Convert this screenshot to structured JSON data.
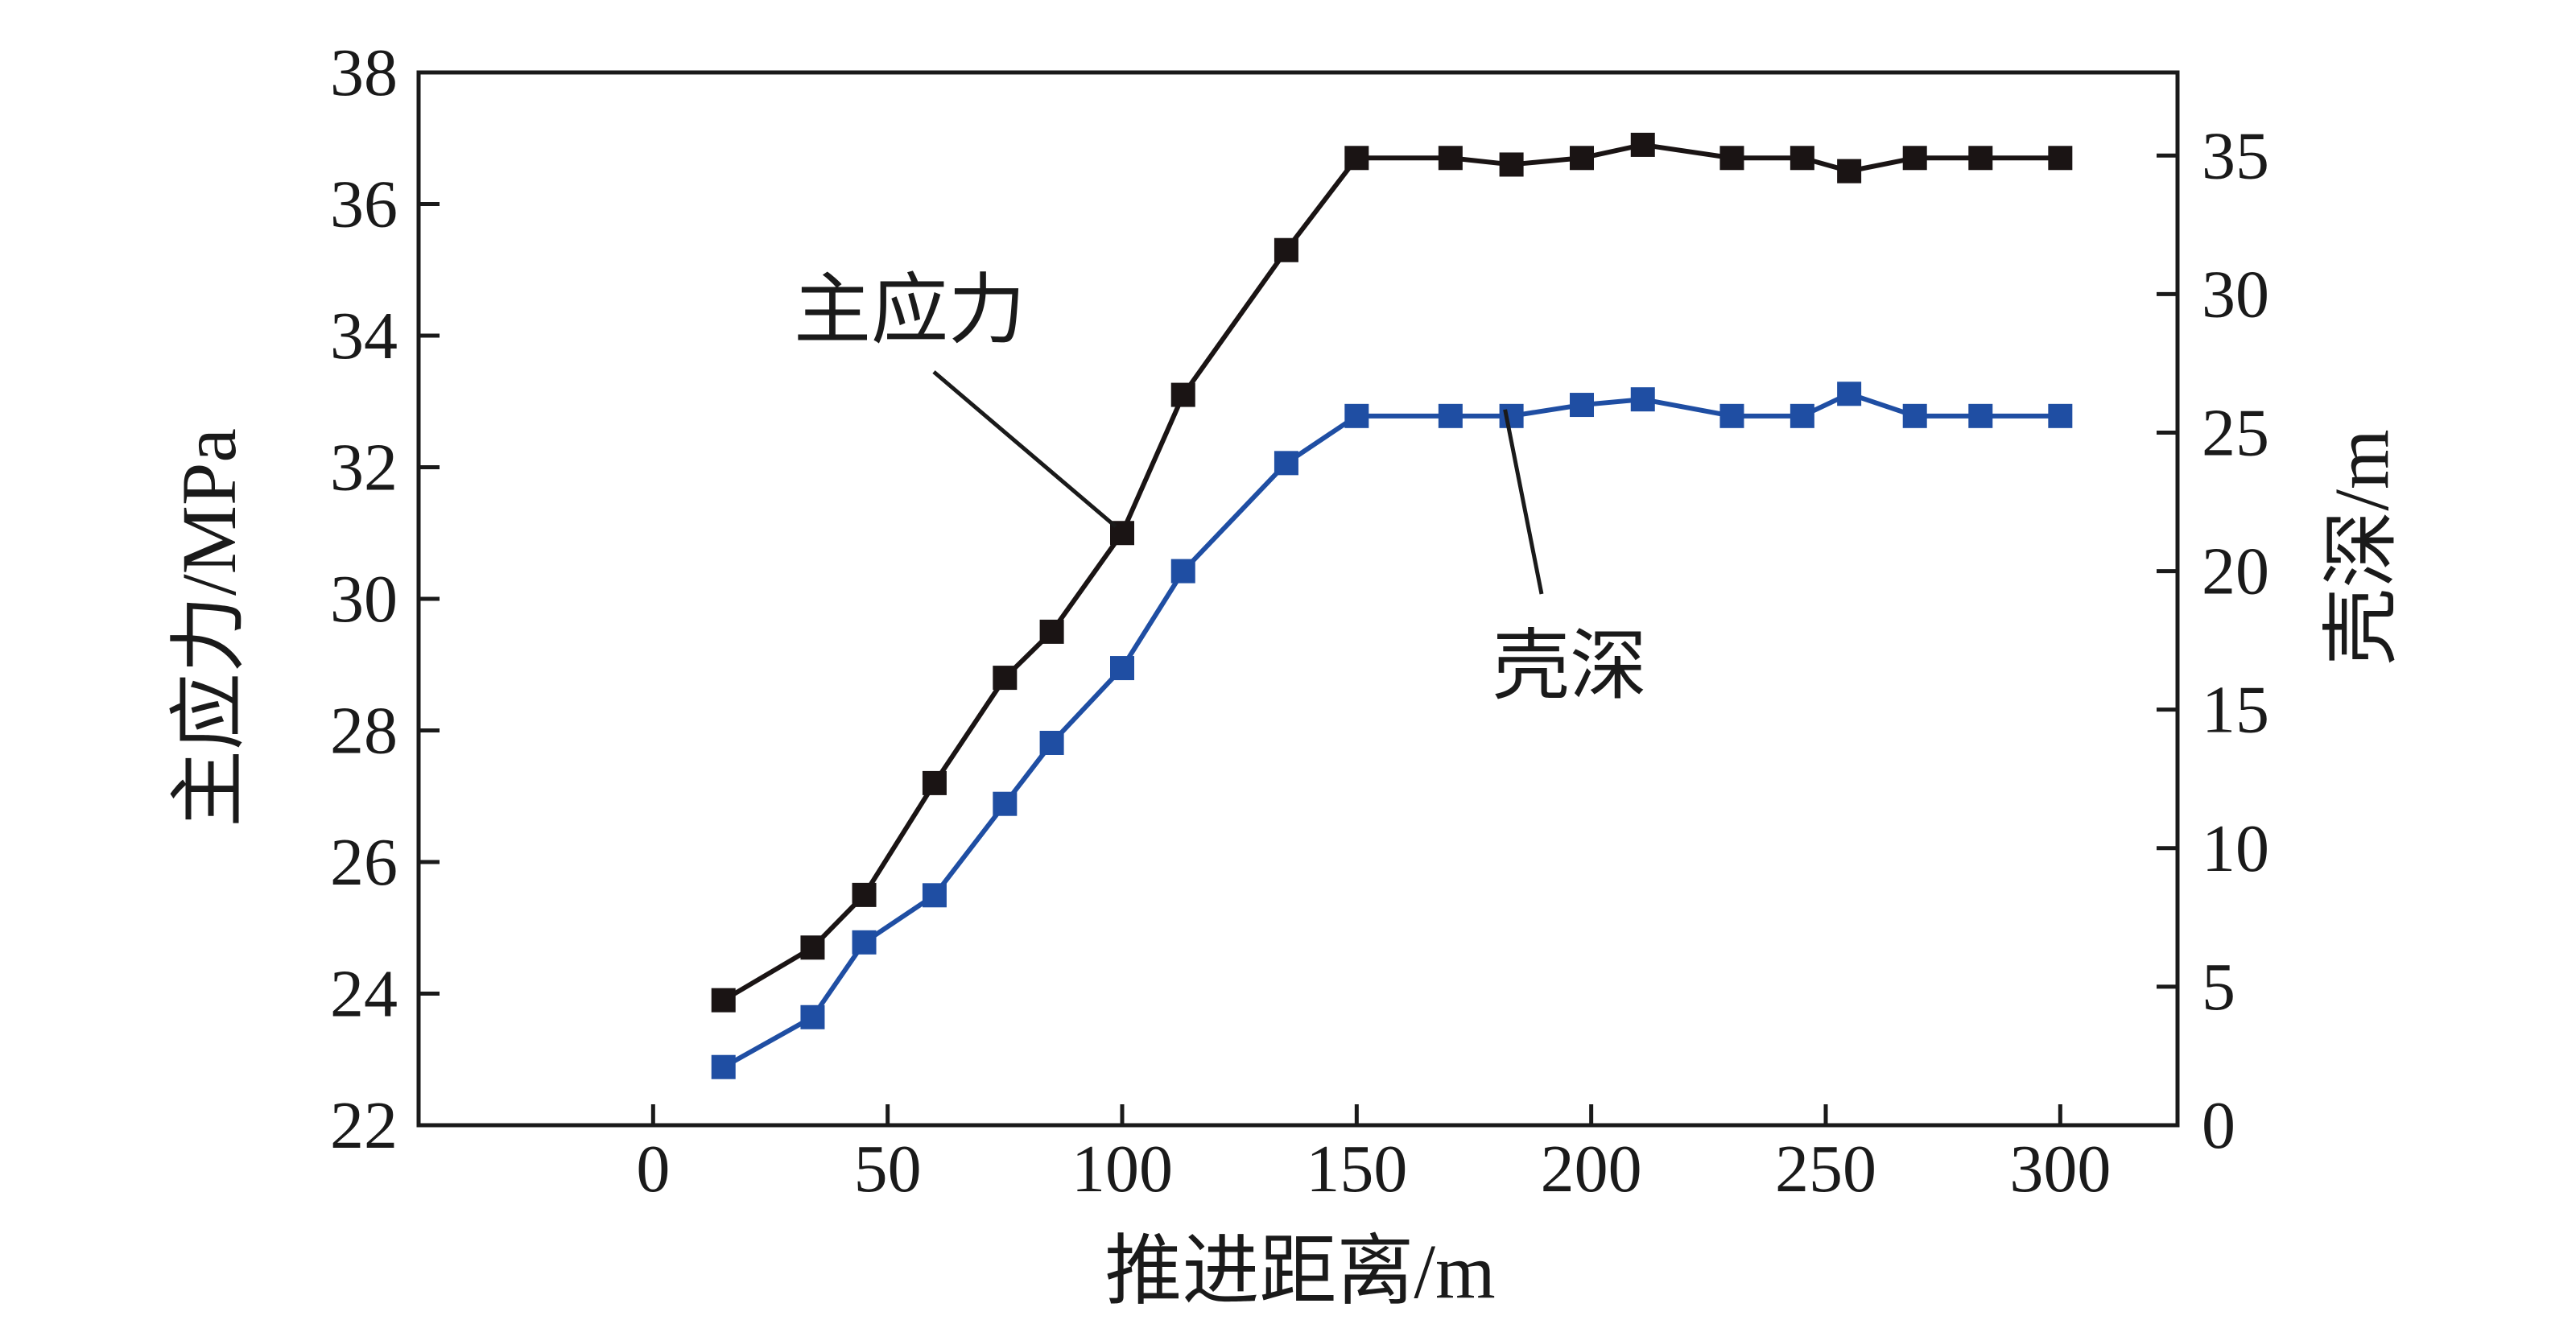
{
  "chart_data": {
    "type": "line",
    "xlabel": "推进距离/m",
    "ylabel_left": "主应力/MPa",
    "ylabel_right": "壳深/m",
    "xlim": [
      -50,
      325
    ],
    "ylim_left": [
      22,
      38
    ],
    "ylim_right": [
      0,
      38
    ],
    "x_ticks": [
      "0",
      "50",
      "100",
      "150",
      "200",
      "250",
      "300"
    ],
    "y_left_ticks": [
      "22",
      "24",
      "26",
      "28",
      "30",
      "32",
      "34",
      "36",
      "38"
    ],
    "y_right_ticks": [
      "0",
      "5",
      "10",
      "15",
      "20",
      "25",
      "30",
      "35"
    ],
    "grid": false,
    "series": [
      {
        "name": "主应力",
        "axis": "left",
        "color": "#1a1414",
        "marker": "square",
        "points": [
          [
            15,
            23.9
          ],
          [
            34,
            24.7
          ],
          [
            45,
            25.5
          ],
          [
            60,
            27.2
          ],
          [
            75,
            28.8
          ],
          [
            85,
            29.5
          ],
          [
            100,
            31.0
          ],
          [
            113,
            33.1
          ],
          [
            135,
            35.3
          ],
          [
            150,
            36.7
          ],
          [
            170,
            36.7
          ],
          [
            183,
            36.6
          ],
          [
            198,
            36.7
          ],
          [
            211,
            36.9
          ],
          [
            230,
            36.7
          ],
          [
            245,
            36.7
          ],
          [
            255,
            36.5
          ],
          [
            269,
            36.7
          ],
          [
            283,
            36.7
          ],
          [
            300,
            36.7
          ]
        ]
      },
      {
        "name": "壳深",
        "axis": "right",
        "color": "#1f4ea3",
        "marker": "square",
        "points": [
          [
            15,
            2.1
          ],
          [
            34,
            3.9
          ],
          [
            45,
            6.6
          ],
          [
            60,
            8.3
          ],
          [
            75,
            11.6
          ],
          [
            85,
            13.8
          ],
          [
            100,
            16.5
          ],
          [
            113,
            20.0
          ],
          [
            135,
            23.9
          ],
          [
            150,
            25.6
          ],
          [
            170,
            25.6
          ],
          [
            183,
            25.6
          ],
          [
            198,
            26.0
          ],
          [
            211,
            26.2
          ],
          [
            230,
            25.6
          ],
          [
            245,
            25.6
          ],
          [
            255,
            26.4
          ],
          [
            269,
            25.6
          ],
          [
            283,
            25.6
          ],
          [
            300,
            25.6
          ]
        ]
      }
    ],
    "annotations": [
      {
        "text": "主应力",
        "target_series": 0,
        "target_index": 6
      },
      {
        "text": "壳深",
        "target_series": 1,
        "target_index": 11
      }
    ]
  }
}
